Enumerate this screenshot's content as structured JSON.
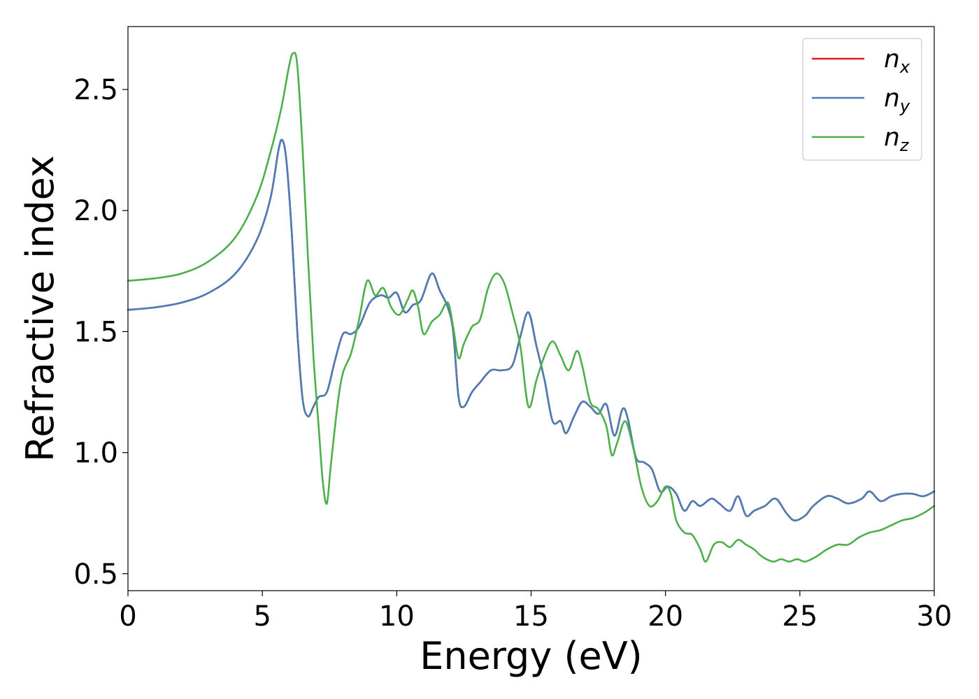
{
  "chart_data": {
    "type": "line",
    "title": "",
    "xlabel": "Energy (eV)",
    "ylabel": "Refractive index",
    "xlim": [
      0,
      30
    ],
    "ylim": [
      0.43,
      2.76
    ],
    "xticks": [
      0,
      5,
      10,
      15,
      20,
      25,
      30
    ],
    "xtick_labels": [
      "0",
      "5",
      "10",
      "15",
      "20",
      "25",
      "30"
    ],
    "yticks": [
      0.5,
      1.0,
      1.5,
      2.0,
      2.5
    ],
    "ytick_labels": [
      "0.5",
      "1.0",
      "1.5",
      "2.0",
      "2.5"
    ],
    "grid": false,
    "legend_position": "top-right",
    "series": [
      {
        "name": "n",
        "subscript": "x",
        "color": "#e41a1c",
        "points": [
          [
            0,
            1.59
          ],
          [
            1,
            1.6
          ],
          [
            2,
            1.62
          ],
          [
            3,
            1.66
          ],
          [
            4,
            1.74
          ],
          [
            4.8,
            1.88
          ],
          [
            5.3,
            2.05
          ],
          [
            5.6,
            2.25
          ],
          [
            5.75,
            2.29
          ],
          [
            5.9,
            2.2
          ],
          [
            6.1,
            1.9
          ],
          [
            6.3,
            1.5
          ],
          [
            6.5,
            1.22
          ],
          [
            6.7,
            1.15
          ],
          [
            6.9,
            1.19
          ],
          [
            7.1,
            1.23
          ],
          [
            7.4,
            1.25
          ],
          [
            7.7,
            1.38
          ],
          [
            8.0,
            1.49
          ],
          [
            8.3,
            1.49
          ],
          [
            8.6,
            1.52
          ],
          [
            9.0,
            1.62
          ],
          [
            9.4,
            1.65
          ],
          [
            9.7,
            1.64
          ],
          [
            10.0,
            1.66
          ],
          [
            10.3,
            1.58
          ],
          [
            10.6,
            1.61
          ],
          [
            10.9,
            1.63
          ],
          [
            11.3,
            1.74
          ],
          [
            11.6,
            1.67
          ],
          [
            11.9,
            1.6
          ],
          [
            12.1,
            1.5
          ],
          [
            12.3,
            1.23
          ],
          [
            12.5,
            1.19
          ],
          [
            12.8,
            1.25
          ],
          [
            13.1,
            1.29
          ],
          [
            13.5,
            1.34
          ],
          [
            13.9,
            1.34
          ],
          [
            14.3,
            1.36
          ],
          [
            14.6,
            1.48
          ],
          [
            14.9,
            1.58
          ],
          [
            15.2,
            1.44
          ],
          [
            15.5,
            1.3
          ],
          [
            15.8,
            1.13
          ],
          [
            16.1,
            1.13
          ],
          [
            16.3,
            1.08
          ],
          [
            16.6,
            1.15
          ],
          [
            16.9,
            1.21
          ],
          [
            17.2,
            1.19
          ],
          [
            17.5,
            1.16
          ],
          [
            17.8,
            1.2
          ],
          [
            18.1,
            1.07
          ],
          [
            18.4,
            1.18
          ],
          [
            18.6,
            1.14
          ],
          [
            18.9,
            0.98
          ],
          [
            19.2,
            0.96
          ],
          [
            19.5,
            0.93
          ],
          [
            19.8,
            0.84
          ],
          [
            20.1,
            0.86
          ],
          [
            20.4,
            0.83
          ],
          [
            20.7,
            0.76
          ],
          [
            21.0,
            0.8
          ],
          [
            21.3,
            0.78
          ],
          [
            21.7,
            0.81
          ],
          [
            22.0,
            0.79
          ],
          [
            22.4,
            0.76
          ],
          [
            22.7,
            0.82
          ],
          [
            23.0,
            0.74
          ],
          [
            23.3,
            0.76
          ],
          [
            23.7,
            0.78
          ],
          [
            24.1,
            0.81
          ],
          [
            24.5,
            0.75
          ],
          [
            24.8,
            0.72
          ],
          [
            25.2,
            0.74
          ],
          [
            25.5,
            0.78
          ],
          [
            26.0,
            0.82
          ],
          [
            26.4,
            0.81
          ],
          [
            26.8,
            0.79
          ],
          [
            27.3,
            0.81
          ],
          [
            27.6,
            0.84
          ],
          [
            28.0,
            0.8
          ],
          [
            28.4,
            0.82
          ],
          [
            28.8,
            0.83
          ],
          [
            29.2,
            0.83
          ],
          [
            29.6,
            0.82
          ],
          [
            30.0,
            0.84
          ]
        ]
      },
      {
        "name": "n",
        "subscript": "y",
        "color": "#4a7db8",
        "points": [
          [
            0,
            1.59
          ],
          [
            1,
            1.6
          ],
          [
            2,
            1.62
          ],
          [
            3,
            1.66
          ],
          [
            4,
            1.74
          ],
          [
            4.8,
            1.88
          ],
          [
            5.3,
            2.05
          ],
          [
            5.6,
            2.25
          ],
          [
            5.75,
            2.29
          ],
          [
            5.9,
            2.2
          ],
          [
            6.1,
            1.9
          ],
          [
            6.3,
            1.5
          ],
          [
            6.5,
            1.22
          ],
          [
            6.7,
            1.15
          ],
          [
            6.9,
            1.19
          ],
          [
            7.1,
            1.23
          ],
          [
            7.4,
            1.25
          ],
          [
            7.7,
            1.38
          ],
          [
            8.0,
            1.49
          ],
          [
            8.3,
            1.49
          ],
          [
            8.6,
            1.52
          ],
          [
            9.0,
            1.62
          ],
          [
            9.4,
            1.65
          ],
          [
            9.7,
            1.64
          ],
          [
            10.0,
            1.66
          ],
          [
            10.3,
            1.58
          ],
          [
            10.6,
            1.61
          ],
          [
            10.9,
            1.63
          ],
          [
            11.3,
            1.74
          ],
          [
            11.6,
            1.67
          ],
          [
            11.9,
            1.6
          ],
          [
            12.1,
            1.5
          ],
          [
            12.3,
            1.23
          ],
          [
            12.5,
            1.19
          ],
          [
            12.8,
            1.25
          ],
          [
            13.1,
            1.29
          ],
          [
            13.5,
            1.34
          ],
          [
            13.9,
            1.34
          ],
          [
            14.3,
            1.36
          ],
          [
            14.6,
            1.48
          ],
          [
            14.9,
            1.58
          ],
          [
            15.2,
            1.44
          ],
          [
            15.5,
            1.3
          ],
          [
            15.8,
            1.13
          ],
          [
            16.1,
            1.13
          ],
          [
            16.3,
            1.08
          ],
          [
            16.6,
            1.15
          ],
          [
            16.9,
            1.21
          ],
          [
            17.2,
            1.19
          ],
          [
            17.5,
            1.16
          ],
          [
            17.8,
            1.2
          ],
          [
            18.1,
            1.07
          ],
          [
            18.4,
            1.18
          ],
          [
            18.6,
            1.14
          ],
          [
            18.9,
            0.98
          ],
          [
            19.2,
            0.96
          ],
          [
            19.5,
            0.93
          ],
          [
            19.8,
            0.84
          ],
          [
            20.1,
            0.86
          ],
          [
            20.4,
            0.83
          ],
          [
            20.7,
            0.76
          ],
          [
            21.0,
            0.8
          ],
          [
            21.3,
            0.78
          ],
          [
            21.7,
            0.81
          ],
          [
            22.0,
            0.79
          ],
          [
            22.4,
            0.76
          ],
          [
            22.7,
            0.82
          ],
          [
            23.0,
            0.74
          ],
          [
            23.3,
            0.76
          ],
          [
            23.7,
            0.78
          ],
          [
            24.1,
            0.81
          ],
          [
            24.5,
            0.75
          ],
          [
            24.8,
            0.72
          ],
          [
            25.2,
            0.74
          ],
          [
            25.5,
            0.78
          ],
          [
            26.0,
            0.82
          ],
          [
            26.4,
            0.81
          ],
          [
            26.8,
            0.79
          ],
          [
            27.3,
            0.81
          ],
          [
            27.6,
            0.84
          ],
          [
            28.0,
            0.8
          ],
          [
            28.4,
            0.82
          ],
          [
            28.8,
            0.83
          ],
          [
            29.2,
            0.83
          ],
          [
            29.6,
            0.82
          ],
          [
            30.0,
            0.84
          ]
        ]
      },
      {
        "name": "n",
        "subscript": "z",
        "color": "#4daf4a",
        "points": [
          [
            0,
            1.71
          ],
          [
            1,
            1.72
          ],
          [
            2,
            1.74
          ],
          [
            3,
            1.79
          ],
          [
            4,
            1.89
          ],
          [
            4.8,
            2.06
          ],
          [
            5.3,
            2.24
          ],
          [
            5.7,
            2.42
          ],
          [
            6.0,
            2.6
          ],
          [
            6.15,
            2.65
          ],
          [
            6.3,
            2.6
          ],
          [
            6.5,
            2.25
          ],
          [
            6.7,
            1.8
          ],
          [
            6.9,
            1.4
          ],
          [
            7.1,
            1.1
          ],
          [
            7.25,
            0.88
          ],
          [
            7.4,
            0.79
          ],
          [
            7.55,
            0.95
          ],
          [
            7.8,
            1.2
          ],
          [
            8.0,
            1.33
          ],
          [
            8.3,
            1.41
          ],
          [
            8.6,
            1.55
          ],
          [
            8.9,
            1.71
          ],
          [
            9.2,
            1.65
          ],
          [
            9.5,
            1.68
          ],
          [
            9.8,
            1.6
          ],
          [
            10.1,
            1.57
          ],
          [
            10.4,
            1.63
          ],
          [
            10.6,
            1.67
          ],
          [
            10.8,
            1.6
          ],
          [
            11.0,
            1.49
          ],
          [
            11.3,
            1.54
          ],
          [
            11.6,
            1.57
          ],
          [
            11.9,
            1.62
          ],
          [
            12.1,
            1.52
          ],
          [
            12.3,
            1.39
          ],
          [
            12.5,
            1.45
          ],
          [
            12.8,
            1.52
          ],
          [
            13.1,
            1.55
          ],
          [
            13.4,
            1.68
          ],
          [
            13.7,
            1.74
          ],
          [
            14.0,
            1.7
          ],
          [
            14.3,
            1.58
          ],
          [
            14.6,
            1.44
          ],
          [
            14.9,
            1.19
          ],
          [
            15.2,
            1.3
          ],
          [
            15.5,
            1.4
          ],
          [
            15.8,
            1.46
          ],
          [
            16.1,
            1.4
          ],
          [
            16.4,
            1.34
          ],
          [
            16.7,
            1.42
          ],
          [
            16.9,
            1.36
          ],
          [
            17.2,
            1.21
          ],
          [
            17.5,
            1.18
          ],
          [
            17.8,
            1.11
          ],
          [
            18.0,
            0.99
          ],
          [
            18.2,
            1.04
          ],
          [
            18.5,
            1.13
          ],
          [
            18.8,
            1.02
          ],
          [
            19.1,
            0.86
          ],
          [
            19.4,
            0.78
          ],
          [
            19.7,
            0.8
          ],
          [
            20.0,
            0.86
          ],
          [
            20.2,
            0.83
          ],
          [
            20.4,
            0.72
          ],
          [
            20.7,
            0.67
          ],
          [
            21.0,
            0.66
          ],
          [
            21.3,
            0.6
          ],
          [
            21.5,
            0.55
          ],
          [
            21.8,
            0.62
          ],
          [
            22.1,
            0.63
          ],
          [
            22.4,
            0.61
          ],
          [
            22.7,
            0.64
          ],
          [
            23.0,
            0.62
          ],
          [
            23.3,
            0.6
          ],
          [
            23.6,
            0.57
          ],
          [
            24.0,
            0.55
          ],
          [
            24.3,
            0.56
          ],
          [
            24.6,
            0.55
          ],
          [
            24.9,
            0.56
          ],
          [
            25.2,
            0.55
          ],
          [
            25.6,
            0.57
          ],
          [
            26.0,
            0.6
          ],
          [
            26.4,
            0.62
          ],
          [
            26.8,
            0.62
          ],
          [
            27.2,
            0.65
          ],
          [
            27.6,
            0.67
          ],
          [
            28.0,
            0.68
          ],
          [
            28.4,
            0.7
          ],
          [
            28.8,
            0.72
          ],
          [
            29.2,
            0.73
          ],
          [
            29.6,
            0.75
          ],
          [
            30.0,
            0.78
          ]
        ]
      }
    ]
  }
}
